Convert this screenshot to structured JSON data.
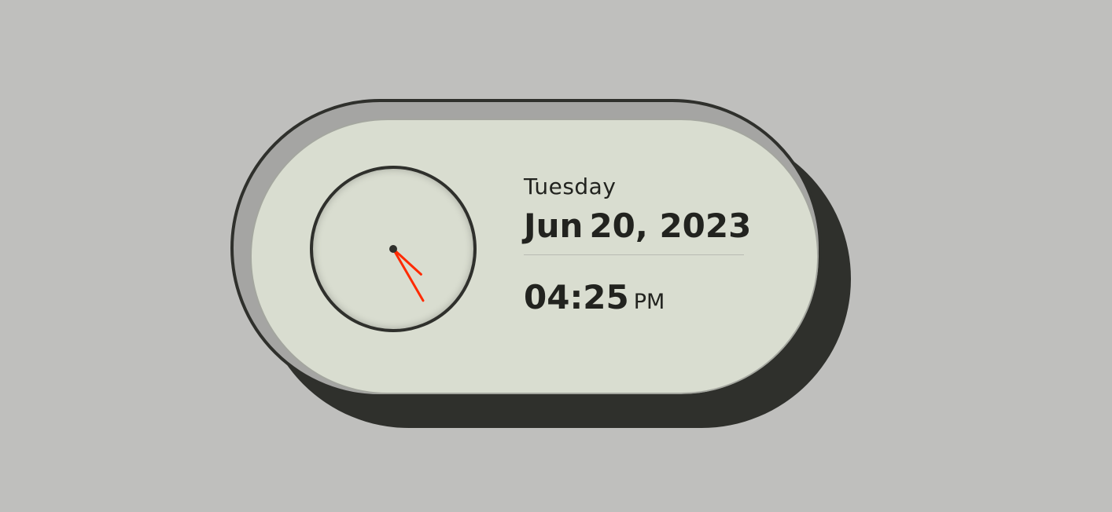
{
  "colors": {
    "background": "#bfbfbd",
    "face": "#d9ddd0",
    "outline": "#2f302c",
    "hand": "#ff2a00"
  },
  "date": {
    "day_name": "Tuesday",
    "month": "Jun",
    "day_year": "20, 2023"
  },
  "time": {
    "hours_minutes": "04:25",
    "ampm": "PM"
  },
  "clock": {
    "hour": 4,
    "minute": 25
  }
}
